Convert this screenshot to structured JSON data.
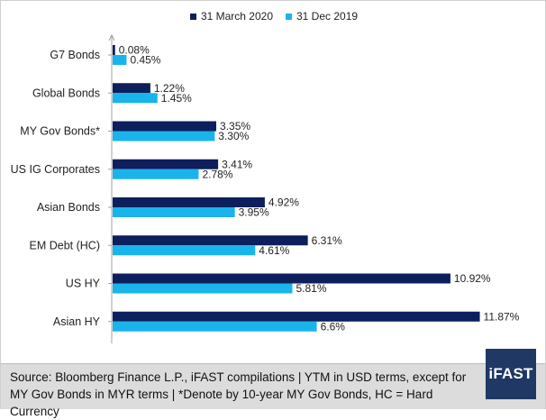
{
  "colors": {
    "series_1": "#0d1f5c",
    "series_2": "#19b4ec",
    "footer_bg": "#dcdcdc",
    "brand_bg": "#1f3864"
  },
  "footer": {
    "source": "Source: Bloomberg Finance L.P., iFAST compilations | YTM in USD terms, except for MY Gov Bonds in MYR terms | *Denote by 10-year MY Gov Bonds, HC = Hard Currency"
  },
  "brand": {
    "name": "iFAST"
  },
  "chart_data": {
    "type": "bar",
    "orientation": "horizontal",
    "categories": [
      "G7 Bonds",
      "Global Bonds",
      "MY Gov Bonds*",
      "US IG Corporates",
      "Asian Bonds",
      "EM Debt (HC)",
      "US HY",
      "Asian HY"
    ],
    "series": [
      {
        "name": "31 March 2020",
        "values": [
          0.08,
          1.22,
          3.35,
          3.41,
          4.92,
          6.31,
          10.92,
          11.87
        ],
        "labels": [
          "0.08%",
          "1.22%",
          "3.35%",
          "3.41%",
          "4.92%",
          "6.31%",
          "10.92%",
          "11.87%"
        ]
      },
      {
        "name": "31 Dec 2019",
        "values": [
          0.45,
          1.45,
          3.3,
          2.78,
          3.95,
          4.61,
          5.81,
          6.6
        ],
        "labels": [
          "0.45%",
          "1.45%",
          "3.30%",
          "2.78%",
          "3.95%",
          "4.61%",
          "5.81%",
          "6.6%"
        ]
      }
    ],
    "xlim": [
      0,
      12
    ],
    "grid": false,
    "legend_position": "top"
  }
}
